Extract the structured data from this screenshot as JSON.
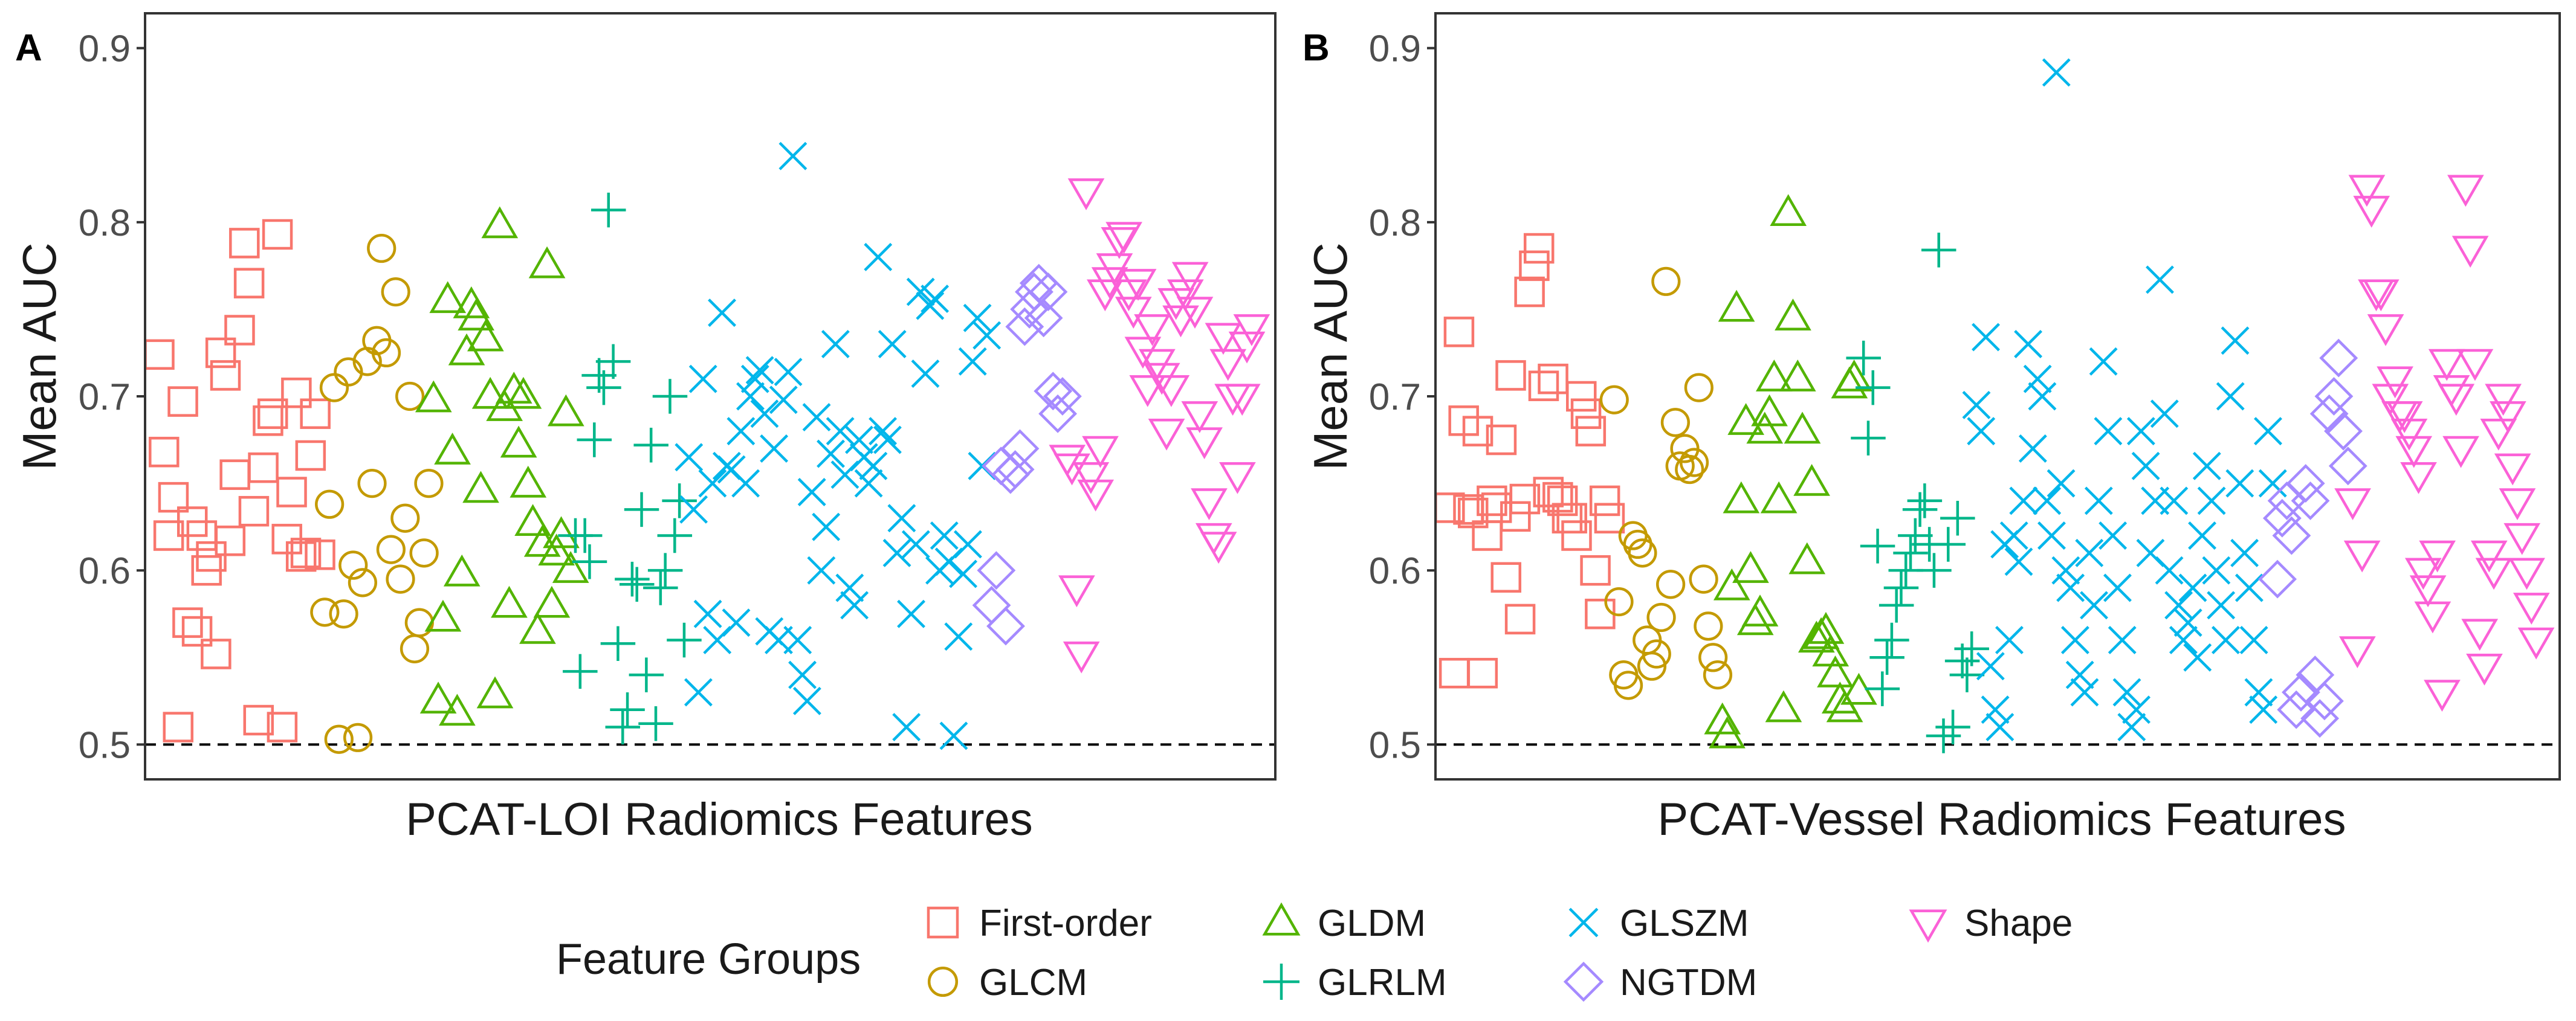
{
  "figure": {
    "legend_title": "Feature Groups",
    "legend_position": "bottom"
  },
  "groups": [
    {
      "name": "First-order",
      "color": "#F8766D",
      "shape": "square"
    },
    {
      "name": "GLCM",
      "color": "#C49A00",
      "shape": "circle"
    },
    {
      "name": "GLDM",
      "color": "#53B400",
      "shape": "triangle-up"
    },
    {
      "name": "GLRLM",
      "color": "#00B68A",
      "shape": "plus"
    },
    {
      "name": "GLSZM",
      "color": "#00B6EB",
      "shape": "cross"
    },
    {
      "name": "NGTDM",
      "color": "#A58AFF",
      "shape": "diamond"
    },
    {
      "name": "Shape",
      "color": "#FB61D7",
      "shape": "triangle-down"
    }
  ],
  "chart_data": [
    {
      "panel_label": "A",
      "type": "scatter",
      "xlabel": "PCAT-LOI Radiomics Features",
      "ylabel": "Mean AUC",
      "ylim": [
        0.48,
        0.92
      ],
      "xlim": [
        -3,
        236
      ],
      "yticks": [
        "0.5",
        "0.6",
        "0.7",
        "0.8",
        "0.9"
      ],
      "reference_line": 0.5,
      "series": [
        {
          "name": "First-order",
          "x": [
            0,
            1,
            2,
            3,
            4,
            5,
            6,
            7,
            8,
            9,
            10,
            11,
            12,
            13,
            14,
            15,
            16,
            17,
            18,
            19,
            20,
            21,
            22,
            23,
            24,
            25,
            26,
            27,
            28,
            29,
            30,
            31,
            32,
            33,
            34
          ],
          "y": [
            0.724,
            0.668,
            0.62,
            0.642,
            0.51,
            0.697,
            0.57,
            0.628,
            0.565,
            0.62,
            0.6,
            0.608,
            0.552,
            0.725,
            0.712,
            0.617,
            0.655,
            0.738,
            0.788,
            0.765,
            0.634,
            0.514,
            0.659,
            0.686,
            0.69,
            0.793,
            0.51,
            0.618,
            0.645,
            0.702,
            0.608,
            0.61,
            0.666,
            0.69,
            0.609
          ]
        },
        {
          "name": "GLCM",
          "x": [
            35,
            36,
            37,
            38,
            39,
            40,
            41,
            42,
            43,
            44,
            45,
            46,
            47,
            48,
            49,
            50,
            51,
            52,
            53,
            54,
            55,
            56,
            57
          ],
          "y": [
            0.576,
            0.638,
            0.705,
            0.503,
            0.575,
            0.714,
            0.603,
            0.504,
            0.593,
            0.72,
            0.65,
            0.732,
            0.785,
            0.725,
            0.612,
            0.76,
            0.595,
            0.63,
            0.7,
            0.555,
            0.57,
            0.61,
            0.65
          ]
        },
        {
          "name": "GLDM",
          "x": [
            58,
            59,
            60,
            61,
            62,
            63,
            64,
            65,
            66,
            67,
            68,
            69,
            70,
            71,
            72,
            73,
            74,
            75,
            76,
            77,
            78,
            79,
            80,
            81,
            82,
            83,
            84,
            85,
            86,
            87
          ],
          "y": [
            0.698,
            0.525,
            0.572,
            0.755,
            0.668,
            0.518,
            0.598,
            0.725,
            0.752,
            0.745,
            0.646,
            0.733,
            0.7,
            0.528,
            0.798,
            0.693,
            0.58,
            0.703,
            0.672,
            0.7,
            0.649,
            0.627,
            0.565,
            0.615,
            0.775,
            0.58,
            0.61,
            0.62,
            0.69,
            0.6
          ]
        },
        {
          "name": "GLRLM",
          "x": [
            88,
            89,
            90,
            91,
            92,
            93,
            94,
            95,
            96,
            97,
            98,
            99,
            100,
            101,
            102,
            103,
            104,
            105,
            106,
            107,
            108,
            109,
            110,
            111
          ],
          "y": [
            0.62,
            0.542,
            0.62,
            0.605,
            0.675,
            0.712,
            0.705,
            0.807,
            0.72,
            0.558,
            0.51,
            0.52,
            0.595,
            0.592,
            0.635,
            0.54,
            0.672,
            0.512,
            0.59,
            0.6,
            0.7,
            0.62,
            0.64,
            0.56
          ]
        },
        {
          "name": "GLSZM",
          "x": [
            112,
            113,
            114,
            115,
            116,
            117,
            118,
            119,
            120,
            121,
            122,
            123,
            124,
            125,
            126,
            127,
            128,
            129,
            130,
            131,
            132,
            133,
            134,
            135,
            136,
            137,
            138,
            139,
            140,
            141,
            142,
            143,
            144,
            145,
            146,
            147,
            148,
            149,
            150,
            151,
            152,
            153,
            154,
            155,
            156,
            157,
            158,
            159,
            160,
            161,
            162,
            163,
            164,
            165,
            166,
            167,
            168,
            169,
            170,
            171,
            172,
            173,
            174,
            175
          ],
          "y": [
            0.665,
            0.635,
            0.53,
            0.71,
            0.575,
            0.65,
            0.56,
            0.748,
            0.66,
            0.658,
            0.57,
            0.68,
            0.65,
            0.7,
            0.71,
            0.715,
            0.69,
            0.565,
            0.67,
            0.56,
            0.698,
            0.714,
            0.838,
            0.56,
            0.54,
            0.525,
            0.645,
            0.688,
            0.6,
            0.625,
            0.667,
            0.73,
            0.68,
            0.655,
            0.59,
            0.58,
            0.675,
            0.665,
            0.65,
            0.66,
            0.78,
            0.68,
            0.675,
            0.73,
            0.61,
            0.63,
            0.51,
            0.575,
            0.615,
            0.76,
            0.713,
            0.752,
            0.756,
            0.6,
            0.62,
            0.605,
            0.505,
            0.562,
            0.598,
            0.615,
            0.72,
            0.745,
            0.66,
            0.735
          ]
        },
        {
          "name": "NGTDM",
          "x": [
            176,
            177,
            178,
            179,
            180,
            181,
            182,
            183,
            184,
            185,
            186,
            187,
            188,
            189,
            190,
            191
          ],
          "y": [
            0.58,
            0.6,
            0.66,
            0.568,
            0.655,
            0.658,
            0.67,
            0.74,
            0.75,
            0.76,
            0.765,
            0.745,
            0.76,
            0.703,
            0.69,
            0.7
          ]
        },
        {
          "name": "Shape",
          "x": [
            192,
            193,
            194,
            195,
            196,
            197,
            198,
            199,
            200,
            201,
            202,
            203,
            204,
            205,
            206,
            207,
            208,
            209,
            210,
            211,
            212,
            213,
            214,
            215,
            216,
            217,
            218,
            219,
            220,
            221,
            222,
            223,
            224,
            225,
            226,
            227,
            228,
            229,
            230,
            231
          ],
          "y": [
            0.665,
            0.66,
            0.59,
            0.552,
            0.818,
            0.655,
            0.645,
            0.67,
            0.76,
            0.767,
            0.775,
            0.79,
            0.793,
            0.76,
            0.75,
            0.766,
            0.727,
            0.705,
            0.74,
            0.72,
            0.712,
            0.68,
            0.705,
            0.755,
            0.745,
            0.76,
            0.77,
            0.75,
            0.69,
            0.675,
            0.64,
            0.62,
            0.615,
            0.735,
            0.72,
            0.7,
            0.655,
            0.7,
            0.73,
            0.74
          ]
        }
      ]
    },
    {
      "panel_label": "B",
      "type": "scatter",
      "xlabel": "PCAT-Vessel Radiomics Features",
      "ylabel": "Mean AUC",
      "ylim": [
        0.48,
        0.92
      ],
      "xlim": [
        -3,
        236
      ],
      "yticks": [
        "0.5",
        "0.6",
        "0.7",
        "0.8",
        "0.9"
      ],
      "reference_line": 0.5,
      "series": [
        {
          "name": "First-order",
          "x": [
            0,
            1,
            2,
            3,
            4,
            5,
            6,
            7,
            8,
            9,
            10,
            11,
            12,
            13,
            14,
            15,
            16,
            17,
            18,
            19,
            20,
            21,
            22,
            23,
            24,
            25,
            26,
            27,
            28,
            29,
            30,
            31,
            32,
            33,
            34
          ],
          "y": [
            0.636,
            0.541,
            0.737,
            0.686,
            0.635,
            0.633,
            0.68,
            0.541,
            0.62,
            0.64,
            0.636,
            0.675,
            0.596,
            0.712,
            0.631,
            0.572,
            0.641,
            0.76,
            0.775,
            0.785,
            0.706,
            0.645,
            0.71,
            0.642,
            0.64,
            0.63,
            0.63,
            0.62,
            0.7,
            0.69,
            0.68,
            0.6,
            0.575,
            0.64,
            0.63
          ]
        },
        {
          "name": "GLCM",
          "x": [
            35,
            36,
            37,
            38,
            39,
            40,
            41,
            42,
            43,
            44,
            45,
            46,
            47,
            48,
            49,
            50,
            51,
            52,
            53,
            54,
            55,
            56,
            57
          ],
          "y": [
            0.698,
            0.582,
            0.54,
            0.534,
            0.62,
            0.615,
            0.61,
            0.56,
            0.545,
            0.552,
            0.573,
            0.766,
            0.592,
            0.685,
            0.66,
            0.67,
            0.658,
            0.662,
            0.705,
            0.595,
            0.568,
            0.55,
            0.54
          ]
        },
        {
          "name": "GLDM",
          "x": [
            58,
            59,
            60,
            61,
            62,
            63,
            64,
            65,
            66,
            67,
            68,
            69,
            70,
            71,
            72,
            73,
            74,
            75,
            76,
            77,
            78,
            79,
            80,
            81,
            82,
            83,
            84,
            85,
            86,
            87
          ],
          "y": [
            0.513,
            0.505,
            0.59,
            0.75,
            0.64,
            0.685,
            0.6,
            0.57,
            0.575,
            0.68,
            0.69,
            0.71,
            0.64,
            0.52,
            0.805,
            0.745,
            0.71,
            0.68,
            0.605,
            0.65,
            0.56,
            0.562,
            0.565,
            0.552,
            0.54,
            0.525,
            0.52,
            0.706,
            0.71,
            0.53
          ]
        },
        {
          "name": "GLRLM",
          "x": [
            88,
            89,
            90,
            91,
            92,
            93,
            94,
            95,
            96,
            97,
            98,
            99,
            100,
            101,
            102,
            103,
            104,
            105,
            106,
            107,
            108,
            109,
            110,
            111
          ],
          "y": [
            0.722,
            0.676,
            0.705,
            0.614,
            0.532,
            0.55,
            0.56,
            0.58,
            0.59,
            0.6,
            0.61,
            0.62,
            0.635,
            0.64,
            0.615,
            0.6,
            0.784,
            0.505,
            0.615,
            0.51,
            0.63,
            0.548,
            0.54,
            0.555
          ]
        },
        {
          "name": "GLSZM",
          "x": [
            112,
            113,
            114,
            115,
            116,
            117,
            118,
            119,
            120,
            121,
            122,
            123,
            124,
            125,
            126,
            127,
            128,
            129,
            130,
            131,
            132,
            133,
            134,
            135,
            136,
            137,
            138,
            139,
            140,
            141,
            142,
            143,
            144,
            145,
            146,
            147,
            148,
            149,
            150,
            151,
            152,
            153,
            154,
            155,
            156,
            157,
            158,
            159,
            160,
            161,
            162,
            163,
            164,
            165,
            166,
            167,
            168,
            169,
            170,
            171,
            172,
            173,
            174,
            175
          ],
          "y": [
            0.695,
            0.68,
            0.734,
            0.545,
            0.52,
            0.51,
            0.615,
            0.56,
            0.62,
            0.605,
            0.64,
            0.73,
            0.67,
            0.71,
            0.7,
            0.64,
            0.62,
            0.886,
            0.65,
            0.6,
            0.59,
            0.56,
            0.54,
            0.53,
            0.61,
            0.58,
            0.64,
            0.72,
            0.68,
            0.62,
            0.59,
            0.56,
            0.53,
            0.51,
            0.52,
            0.68,
            0.66,
            0.61,
            0.64,
            0.767,
            0.69,
            0.6,
            0.64,
            0.58,
            0.56,
            0.57,
            0.59,
            0.55,
            0.62,
            0.66,
            0.64,
            0.6,
            0.58,
            0.56,
            0.7,
            0.732,
            0.65,
            0.61,
            0.59,
            0.56,
            0.53,
            0.52,
            0.68,
            0.65
          ]
        },
        {
          "name": "NGTDM",
          "x": [
            176,
            177,
            178,
            179,
            180,
            181,
            182,
            183,
            184,
            185,
            186,
            187,
            188,
            189,
            190,
            191
          ],
          "y": [
            0.595,
            0.63,
            0.64,
            0.62,
            0.52,
            0.53,
            0.65,
            0.64,
            0.54,
            0.515,
            0.525,
            0.69,
            0.7,
            0.722,
            0.68,
            0.66
          ]
        },
        {
          "name": "Shape",
          "x": [
            192,
            193,
            194,
            195,
            196,
            197,
            198,
            199,
            200,
            201,
            202,
            203,
            204,
            205,
            206,
            207,
            208,
            209,
            210,
            211,
            212,
            213,
            214,
            215,
            216,
            217,
            218,
            219,
            220,
            221,
            222,
            223,
            224,
            225,
            226,
            227,
            228,
            229,
            230,
            231
          ],
          "y": [
            0.64,
            0.555,
            0.61,
            0.82,
            0.808,
            0.76,
            0.76,
            0.74,
            0.7,
            0.71,
            0.69,
            0.69,
            0.68,
            0.67,
            0.655,
            0.6,
            0.59,
            0.575,
            0.61,
            0.53,
            0.72,
            0.705,
            0.7,
            0.67,
            0.82,
            0.785,
            0.72,
            0.565,
            0.545,
            0.61,
            0.6,
            0.68,
            0.7,
            0.69,
            0.66,
            0.64,
            0.62,
            0.6,
            0.58,
            0.56
          ]
        }
      ]
    }
  ]
}
